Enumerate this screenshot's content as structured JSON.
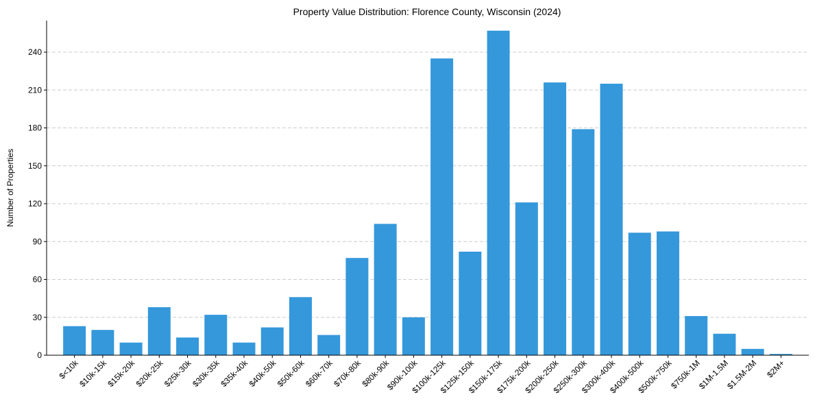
{
  "chart_data": {
    "type": "bar",
    "title": "Property Value Distribution: Florence County, Wisconsin (2024)",
    "xlabel": "",
    "ylabel": "Number of Properties",
    "categories": [
      "$<10k",
      "$10k-15k",
      "$15k-20k",
      "$20k-25k",
      "$25k-30k",
      "$30k-35k",
      "$35k-40k",
      "$40k-50k",
      "$50k-60k",
      "$60k-70k",
      "$70k-80k",
      "$80k-90k",
      "$90k-100k",
      "$100k-125k",
      "$125k-150k",
      "$150k-175k",
      "$175k-200k",
      "$200k-250k",
      "$250k-300k",
      "$300k-400k",
      "$400k-500k",
      "$500k-750k",
      "$750k-1M",
      "$1M-1.5M",
      "$1.5M-2M",
      "$2M+"
    ],
    "values": [
      23,
      20,
      10,
      38,
      14,
      32,
      10,
      22,
      46,
      16,
      77,
      104,
      30,
      235,
      82,
      257,
      121,
      216,
      179,
      215,
      97,
      98,
      31,
      17,
      5,
      1
    ],
    "ylim": [
      0,
      265
    ],
    "yticks": [
      0,
      30,
      60,
      90,
      120,
      150,
      180,
      210,
      240
    ],
    "grid": true,
    "bar_color": "#3498db"
  }
}
